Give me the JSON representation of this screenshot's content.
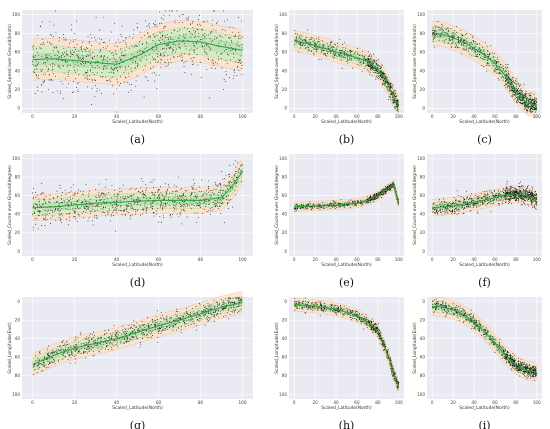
{
  "chart_data": [
    {
      "panel": "(a)",
      "type": "scatter",
      "xlabel": "Scaled_Latitude(North)",
      "ylabel": "Scaled_Speed over Ground(knots)",
      "xlim": [
        -5,
        105
      ],
      "ylim": [
        -5,
        105
      ],
      "xticks": [
        0,
        20,
        40,
        60,
        80,
        100
      ],
      "yticks": [
        0,
        20,
        40,
        60,
        80,
        100
      ],
      "y_inverted": false,
      "mean": {
        "x": [
          0,
          10,
          20,
          30,
          40,
          50,
          60,
          70,
          80,
          90,
          100
        ],
        "y": [
          52,
          53,
          51,
          49,
          47,
          56,
          68,
          72,
          71,
          66,
          62
        ]
      },
      "band_widths": [
        6,
        14,
        22
      ],
      "point_spread": 30,
      "point_count": 900,
      "point_x_range": [
        0,
        100
      ],
      "point_density": "uniform"
    },
    {
      "panel": "(b)",
      "type": "scatter",
      "xlabel": "Scaled_Latitude(North)",
      "ylabel": "Scaled_Speed over Ground(knots)",
      "xlim": [
        -5,
        105
      ],
      "ylim": [
        -5,
        105
      ],
      "xticks": [
        0,
        20,
        40,
        60,
        80,
        100
      ],
      "yticks": [
        0,
        20,
        40,
        60,
        80,
        100
      ],
      "y_inverted": false,
      "mean": {
        "x": [
          0,
          10,
          20,
          30,
          40,
          50,
          60,
          70,
          80,
          90,
          95,
          100
        ],
        "y": [
          72,
          70,
          67,
          64,
          60,
          57,
          54,
          50,
          42,
          25,
          12,
          2
        ]
      },
      "band_widths": [
        3,
        7,
        11
      ],
      "point_spread": 8,
      "point_count": 700,
      "point_x_range": [
        0,
        100
      ],
      "point_density": "right-heavy"
    },
    {
      "panel": "(c)",
      "type": "scatter",
      "xlabel": "Scaled_Latitude(North)",
      "ylabel": "Scaled_Speed over Ground(knots)",
      "xlim": [
        -5,
        105
      ],
      "ylim": [
        -5,
        105
      ],
      "xticks": [
        0,
        20,
        40,
        60,
        80,
        100
      ],
      "yticks": [
        0,
        20,
        40,
        60,
        80,
        100
      ],
      "y_inverted": false,
      "mean": {
        "x": [
          0,
          10,
          20,
          30,
          40,
          50,
          60,
          70,
          80,
          90,
          100
        ],
        "y": [
          80,
          79,
          75,
          71,
          64,
          57,
          48,
          35,
          18,
          6,
          3
        ]
      },
      "band_widths": [
        4,
        8,
        13
      ],
      "point_spread": 10,
      "point_count": 800,
      "point_x_range": [
        0,
        100
      ],
      "point_density": "right-heavy"
    },
    {
      "panel": "(d)",
      "type": "scatter",
      "xlabel": "Scaled_Latitude(North)",
      "ylabel": "Scaled_Course over Ground(degree)",
      "xlim": [
        -5,
        105
      ],
      "ylim": [
        -5,
        105
      ],
      "xticks": [
        0,
        20,
        40,
        60,
        80,
        100
      ],
      "yticks": [
        0,
        20,
        40,
        60,
        80,
        100
      ],
      "y_inverted": false,
      "mean": {
        "x": [
          0,
          10,
          20,
          30,
          40,
          50,
          60,
          70,
          80,
          90,
          95,
          100
        ],
        "y": [
          47,
          48,
          50,
          52,
          53,
          54,
          55,
          55,
          55,
          58,
          70,
          86
        ]
      },
      "band_widths": [
        4,
        9,
        14
      ],
      "point_spread": 18,
      "point_count": 900,
      "point_x_range": [
        0,
        100
      ],
      "point_density": "uniform"
    },
    {
      "panel": "(e)",
      "type": "scatter",
      "xlabel": "Scaled_Latitude(North)",
      "ylabel": "Scaled_Course over Ground(degree)",
      "xlim": [
        -5,
        105
      ],
      "ylim": [
        -5,
        105
      ],
      "xticks": [
        0,
        20,
        40,
        60,
        80,
        100
      ],
      "yticks": [
        0,
        20,
        40,
        60,
        80,
        100
      ],
      "y_inverted": false,
      "mean": {
        "x": [
          0,
          20,
          40,
          60,
          70,
          80,
          90,
          95,
          100
        ],
        "y": [
          48,
          49,
          50,
          52,
          55,
          60,
          68,
          72,
          52
        ]
      },
      "band_widths": [
        1.5,
        3,
        5
      ],
      "point_spread": 3,
      "point_count": 600,
      "point_x_range": [
        0,
        100
      ],
      "point_density": "right-heavy"
    },
    {
      "panel": "(f)",
      "type": "scatter",
      "xlabel": "Scaled_Latitude(North)",
      "ylabel": "Scaled_Course over Ground(degree)",
      "xlim": [
        -5,
        105
      ],
      "ylim": [
        -5,
        105
      ],
      "xticks": [
        0,
        20,
        40,
        60,
        80,
        100
      ],
      "yticks": [
        0,
        20,
        40,
        60,
        80,
        100
      ],
      "y_inverted": false,
      "mean": {
        "x": [
          0,
          20,
          40,
          60,
          70,
          80,
          90,
          100
        ],
        "y": [
          47,
          49,
          53,
          58,
          61,
          62,
          60,
          56
        ]
      },
      "band_widths": [
        2,
        5,
        9
      ],
      "point_spread": 8,
      "point_count": 900,
      "point_x_range": [
        0,
        100
      ],
      "point_density": "right-heavy"
    },
    {
      "panel": "(g)",
      "type": "scatter",
      "xlabel": "Scaled_Latitude(North)",
      "ylabel": "Scaled_Longitude(East)",
      "xlim": [
        -5,
        105
      ],
      "ylim": [
        -5,
        105
      ],
      "xticks": [
        0,
        20,
        40,
        60,
        80,
        100
      ],
      "yticks": [
        0,
        20,
        40,
        60,
        80,
        100
      ],
      "y_inverted": true,
      "mean": {
        "x": [
          0,
          10,
          20,
          30,
          40,
          50,
          60,
          70,
          80,
          90,
          100
        ],
        "y": [
          68,
          58,
          50,
          45,
          40,
          33,
          26,
          20,
          13,
          6,
          1
        ]
      },
      "band_widths": [
        3,
        7,
        12
      ],
      "point_spread": 10,
      "point_count": 900,
      "point_x_range": [
        0,
        100
      ],
      "point_density": "uniform"
    },
    {
      "panel": "(h)",
      "type": "scatter",
      "xlabel": "Scaled_Latitude(North)",
      "ylabel": "Scaled_Longitude(East)",
      "xlim": [
        -5,
        105
      ],
      "ylim": [
        -5,
        105
      ],
      "xticks": [
        0,
        20,
        40,
        60,
        80,
        100
      ],
      "yticks": [
        0,
        20,
        40,
        60,
        80,
        100
      ],
      "y_inverted": true,
      "mean": {
        "x": [
          0,
          20,
          40,
          60,
          70,
          80,
          90,
          95,
          100
        ],
        "y": [
          3,
          5,
          8,
          15,
          22,
          32,
          58,
          78,
          92
        ]
      },
      "band_widths": [
        2,
        4,
        7
      ],
      "point_spread": 5,
      "point_count": 700,
      "point_x_range": [
        0,
        100
      ],
      "point_density": "right-heavy"
    },
    {
      "panel": "(i)",
      "type": "scatter",
      "xlabel": "Scaled_Latitude(North)",
      "ylabel": "Scaled_Longitude(East)",
      "xlim": [
        -5,
        105
      ],
      "ylim": [
        -5,
        105
      ],
      "xticks": [
        0,
        20,
        40,
        60,
        80,
        100
      ],
      "yticks": [
        0,
        20,
        40,
        60,
        80,
        100
      ],
      "y_inverted": true,
      "mean": {
        "x": [
          0,
          10,
          20,
          30,
          40,
          50,
          60,
          70,
          80,
          90,
          100
        ],
        "y": [
          5,
          6,
          9,
          14,
          22,
          32,
          45,
          58,
          68,
          74,
          76
        ]
      },
      "band_widths": [
        3,
        6,
        10
      ],
      "point_spread": 6,
      "point_count": 800,
      "point_x_range": [
        0,
        100
      ],
      "point_density": "right-heavy"
    }
  ],
  "colors": {
    "plot_background": "#eaeaf2",
    "points": "#111111",
    "mean_line": "#2ca02c",
    "inner_band": "#b5e0b5",
    "middle_band": "#c8eec0",
    "outer_band": "#fce2c2",
    "band_edge": "#e06a3a"
  }
}
